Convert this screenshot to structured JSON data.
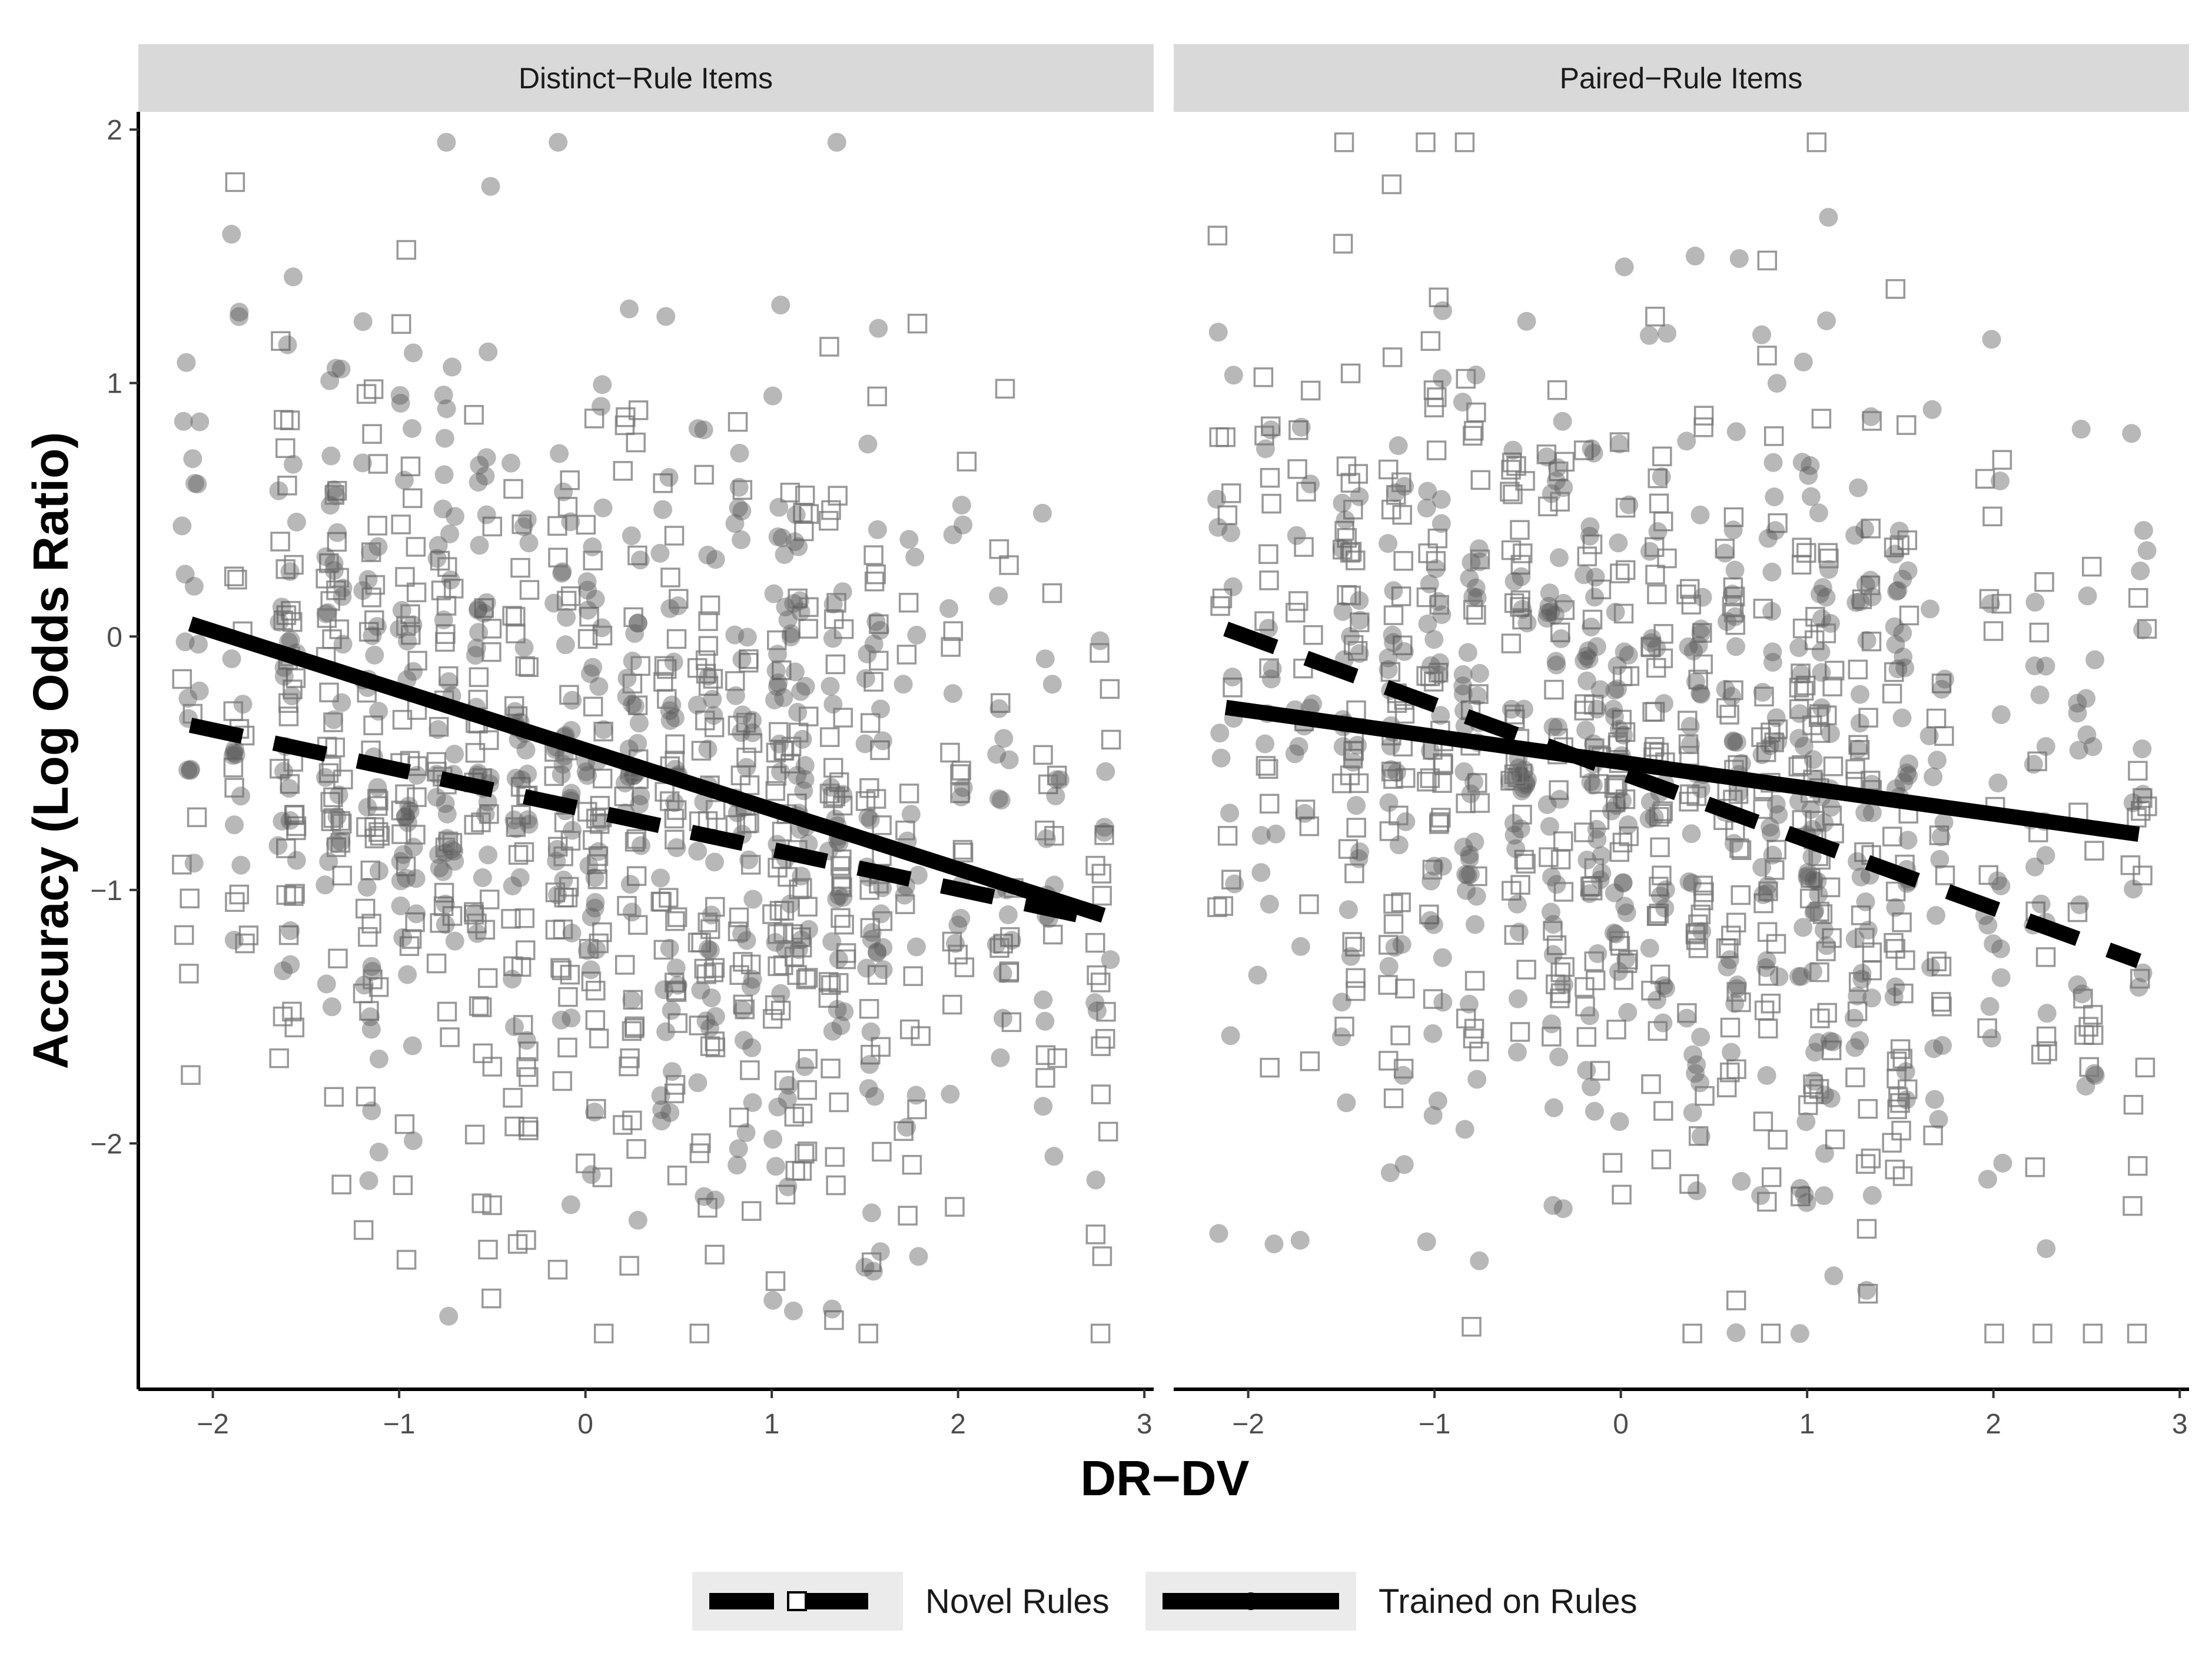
{
  "chart_data": {
    "type": "scatter",
    "xlabel": "DR−DV",
    "ylabel": "Accuracy (Log Odds Ratio)",
    "xlim": [
      -2.4,
      3.05
    ],
    "ylim": [
      -2.97,
      2.07
    ],
    "x_ticks": [
      -2,
      -1,
      0,
      1,
      2,
      3
    ],
    "x_tick_labels": [
      "−2",
      "−1",
      "0",
      "1",
      "2",
      "3"
    ],
    "y_ticks": [
      -2,
      -1,
      0,
      1,
      2
    ],
    "y_tick_labels": [
      "−2",
      "−1",
      "0",
      "1",
      "2"
    ],
    "legend": {
      "position": "bottom",
      "entries": [
        {
          "name": "Novel Rules",
          "marker": "open-square",
          "line": "dashed"
        },
        {
          "name": "Trained on Rules",
          "marker": "filled-circle",
          "line": "solid"
        }
      ]
    },
    "panels": [
      {
        "title": "Distinct−Rule Items",
        "point_cloud_seed": 11,
        "point_x_levels": [
          -2.12,
          -1.85,
          -1.6,
          -1.35,
          -1.15,
          -0.95,
          -0.75,
          -0.55,
          -0.35,
          -0.12,
          0.05,
          0.25,
          0.45,
          0.65,
          0.85,
          1.05,
          1.15,
          1.35,
          1.55,
          1.75,
          2.0,
          2.25,
          2.5,
          2.78
        ],
        "fit_lines": [
          {
            "series": "Trained on Rules",
            "style": "solid",
            "x": [
              -2.12,
              2.78
            ],
            "y": [
              0.05,
              -1.1
            ]
          },
          {
            "series": "Novel Rules",
            "style": "dashed",
            "x": [
              -2.12,
              2.78
            ],
            "y": [
              -0.35,
              -1.12
            ]
          }
        ]
      },
      {
        "title": "Paired−Rule Items",
        "point_cloud_seed": 29,
        "point_x_levels": [
          -2.12,
          -1.9,
          -1.7,
          -1.45,
          -1.2,
          -1.0,
          -0.8,
          -0.55,
          -0.35,
          -0.15,
          0.0,
          0.2,
          0.4,
          0.6,
          0.8,
          1.0,
          1.1,
          1.3,
          1.5,
          1.7,
          2.0,
          2.25,
          2.5,
          2.78
        ],
        "fit_lines": [
          {
            "series": "Trained on Rules",
            "style": "solid",
            "x": [
              -2.12,
              2.78
            ],
            "y": [
              -0.28,
              -0.78
            ]
          },
          {
            "series": "Novel Rules",
            "style": "dashed",
            "x": [
              -2.12,
              2.78
            ],
            "y": [
              0.03,
              -1.28
            ]
          }
        ]
      }
    ]
  }
}
